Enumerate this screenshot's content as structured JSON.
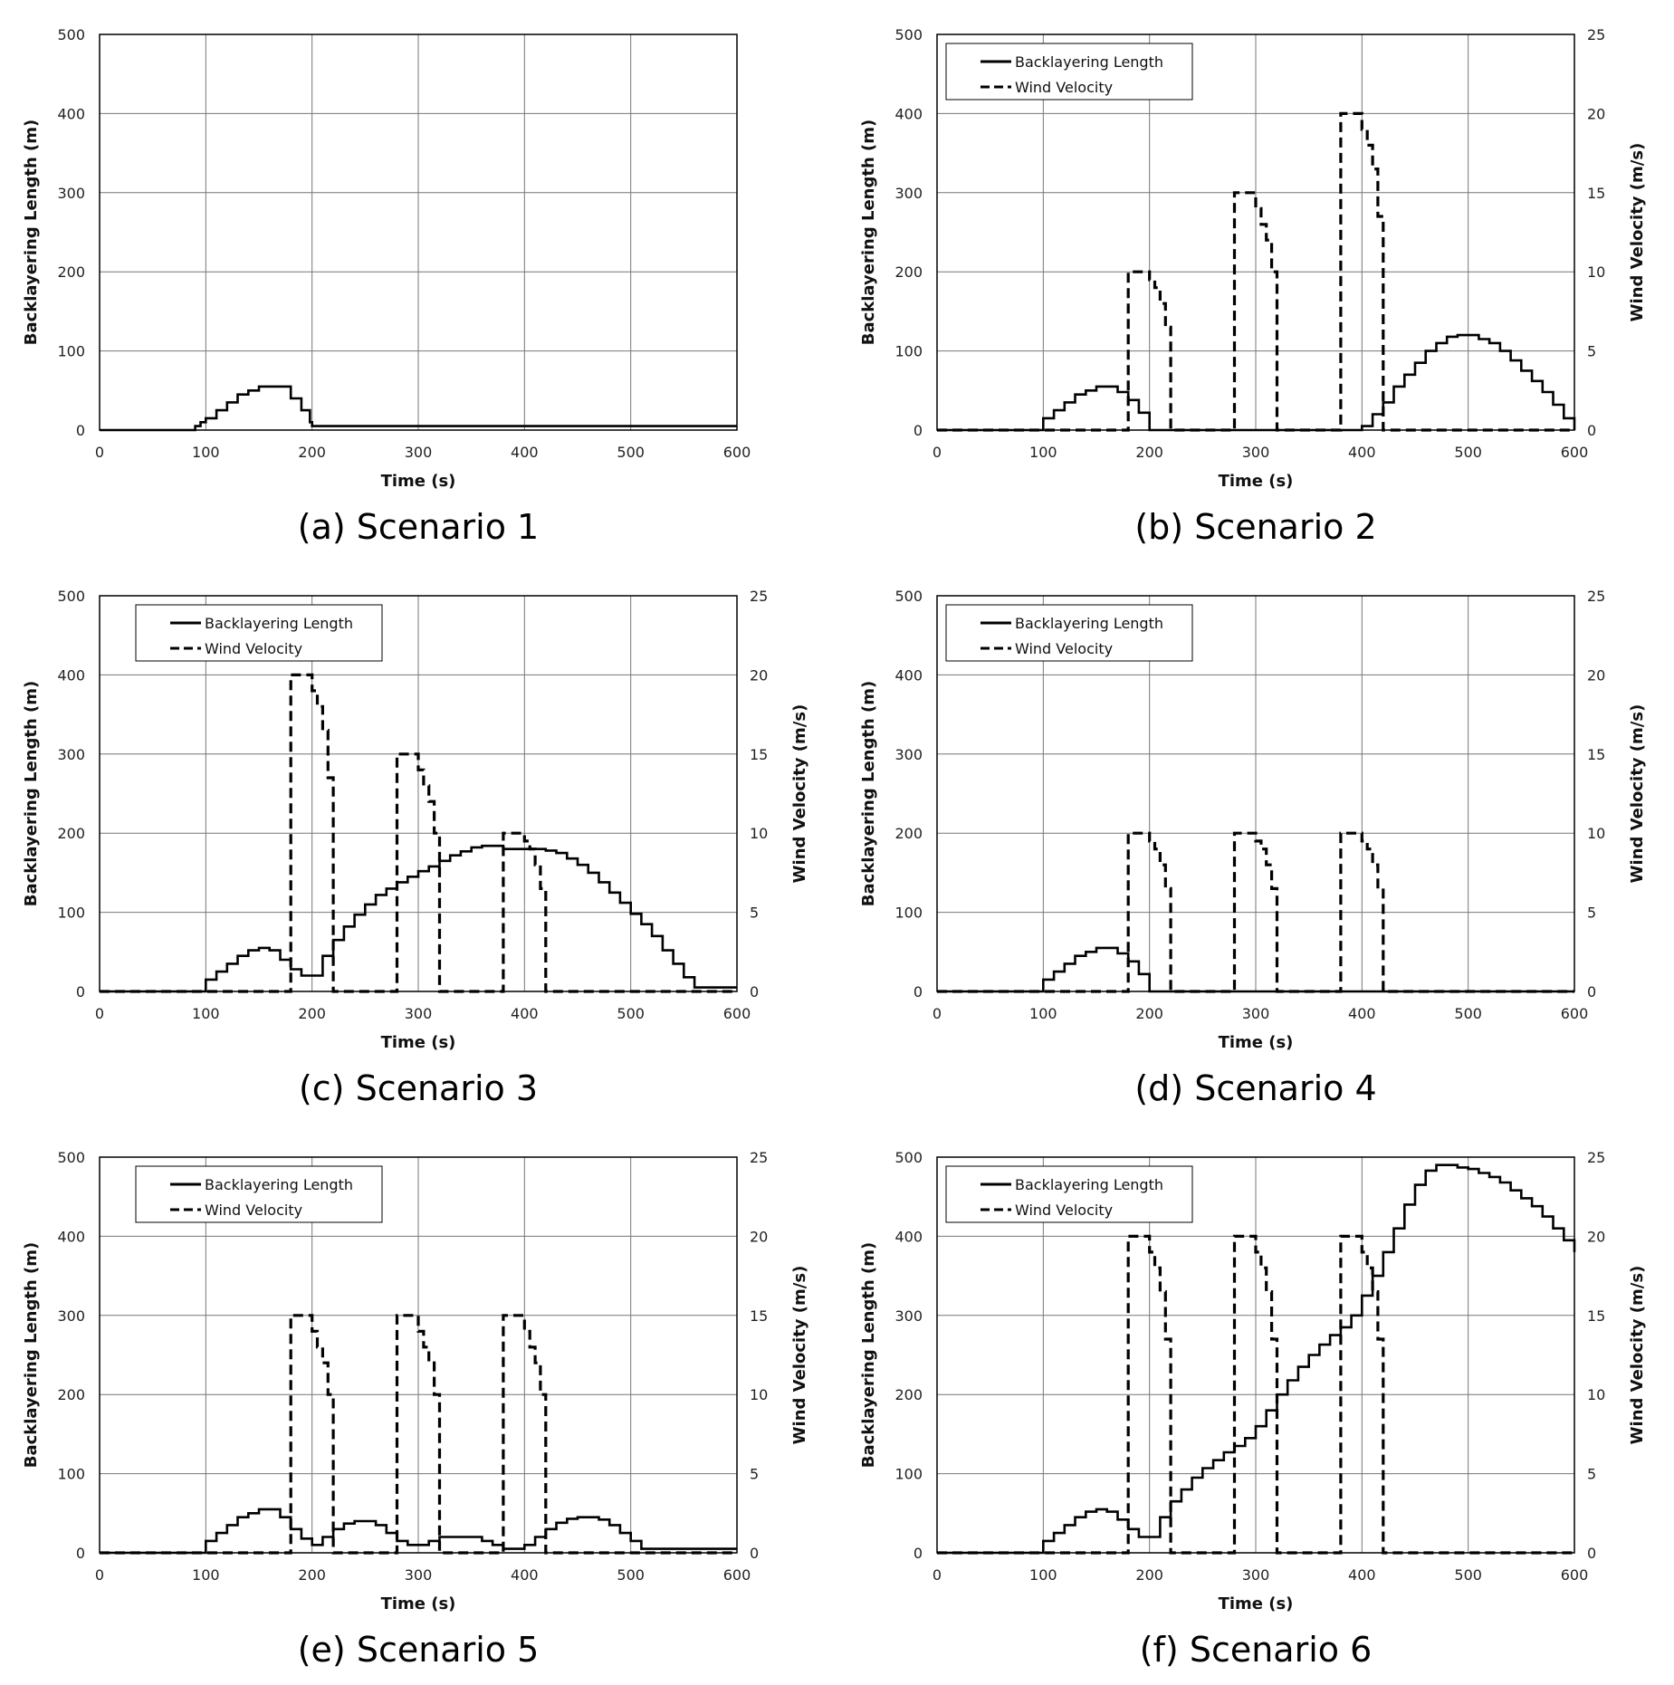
{
  "chart_data": [
    {
      "type": "line",
      "caption": "(a) Scenario 1",
      "xlabel": "Time (s)",
      "ylabel": "Backlayering Length  (m)",
      "y2label": "",
      "xlim": [
        0,
        600
      ],
      "ylim": [
        0,
        500
      ],
      "y2lim": null,
      "xticks": [
        0,
        100,
        200,
        300,
        400,
        500,
        600
      ],
      "yticks": [
        0,
        100,
        200,
        300,
        400,
        500
      ],
      "y2ticks": [],
      "grid": true,
      "legend": [],
      "series": [
        {
          "axis": "y",
          "style": "solid",
          "x": [
            0,
            90,
            95,
            100,
            110,
            120,
            130,
            140,
            150,
            160,
            170,
            180,
            190,
            198,
            200,
            600
          ],
          "y": [
            0,
            5,
            10,
            15,
            25,
            35,
            45,
            50,
            55,
            55,
            55,
            40,
            25,
            10,
            5,
            5
          ]
        }
      ]
    },
    {
      "type": "line",
      "caption": "(b) Scenario 2",
      "xlabel": "Time (s)",
      "ylabel": "Backlayering Length  (m)",
      "y2label": "Wind Velocity (m/s)",
      "xlim": [
        0,
        600
      ],
      "ylim": [
        0,
        500
      ],
      "y2lim": [
        0,
        25
      ],
      "xticks": [
        0,
        100,
        200,
        300,
        400,
        500,
        600
      ],
      "yticks": [
        0,
        100,
        200,
        300,
        400,
        500
      ],
      "y2ticks": [
        0,
        5,
        10,
        15,
        20,
        25
      ],
      "grid": true,
      "legend": [
        "Backlayering Length",
        "Wind Velocity"
      ],
      "series": [
        {
          "name": "Backlayering Length",
          "axis": "y",
          "style": "solid",
          "x": [
            0,
            90,
            100,
            110,
            120,
            130,
            140,
            150,
            160,
            170,
            180,
            190,
            200,
            390,
            400,
            410,
            420,
            430,
            440,
            450,
            460,
            470,
            480,
            490,
            500,
            510,
            520,
            530,
            540,
            550,
            560,
            570,
            580,
            590,
            600
          ],
          "y": [
            0,
            0,
            15,
            25,
            35,
            45,
            50,
            55,
            55,
            48,
            38,
            22,
            0,
            0,
            5,
            20,
            35,
            55,
            70,
            85,
            100,
            110,
            118,
            120,
            120,
            115,
            110,
            100,
            88,
            75,
            62,
            48,
            32,
            15,
            0
          ]
        },
        {
          "name": "Wind Velocity",
          "axis": "y2",
          "style": "dashed",
          "x": [
            0,
            180,
            180,
            190,
            200,
            205,
            210,
            215,
            220,
            220,
            280,
            280,
            290,
            300,
            305,
            310,
            315,
            320,
            320,
            380,
            380,
            390,
            400,
            405,
            410,
            415,
            420,
            420,
            600
          ],
          "y": [
            0,
            0,
            10,
            10,
            9.5,
            9,
            8,
            6.5,
            3,
            0,
            0,
            15,
            15,
            14,
            13,
            12,
            10,
            4.5,
            0,
            0,
            20,
            20,
            19,
            18,
            16.5,
            13.5,
            6,
            0,
            0
          ]
        }
      ]
    },
    {
      "type": "line",
      "caption": "(c) Scenario 3",
      "xlabel": "Time (s)",
      "ylabel": "Backlayering Length  (m)",
      "y2label": "Wind Velocity (m/s)",
      "xlim": [
        0,
        600
      ],
      "ylim": [
        0,
        500
      ],
      "y2lim": [
        0,
        25
      ],
      "xticks": [
        0,
        100,
        200,
        300,
        400,
        500,
        600
      ],
      "yticks": [
        0,
        100,
        200,
        300,
        400,
        500
      ],
      "y2ticks": [
        0,
        5,
        10,
        15,
        20,
        25
      ],
      "grid": true,
      "legend": [
        "Backlayering Length",
        "Wind Velocity"
      ],
      "series": [
        {
          "name": "Backlayering Length",
          "axis": "y",
          "style": "solid",
          "x": [
            0,
            90,
            100,
            110,
            120,
            130,
            140,
            150,
            160,
            170,
            180,
            190,
            200,
            210,
            220,
            230,
            240,
            250,
            260,
            270,
            280,
            290,
            300,
            310,
            320,
            330,
            340,
            350,
            360,
            370,
            380,
            390,
            400,
            410,
            420,
            430,
            440,
            450,
            460,
            470,
            480,
            490,
            500,
            510,
            520,
            530,
            540,
            550,
            560,
            600
          ],
          "y": [
            0,
            0,
            15,
            25,
            35,
            45,
            52,
            55,
            52,
            40,
            28,
            20,
            20,
            45,
            65,
            82,
            97,
            110,
            122,
            130,
            138,
            145,
            152,
            158,
            165,
            172,
            177,
            182,
            184,
            184,
            180,
            180,
            180,
            180,
            178,
            175,
            168,
            160,
            150,
            138,
            125,
            112,
            98,
            85,
            70,
            52,
            35,
            18,
            5,
            5
          ]
        },
        {
          "name": "Wind Velocity",
          "axis": "y2",
          "style": "dashed",
          "x": [
            0,
            180,
            180,
            190,
            200,
            205,
            210,
            215,
            220,
            220,
            280,
            280,
            290,
            300,
            305,
            310,
            315,
            320,
            320,
            380,
            380,
            390,
            400,
            405,
            410,
            415,
            420,
            420,
            600
          ],
          "y": [
            0,
            0,
            20,
            20,
            19,
            18,
            16.5,
            13.5,
            6,
            0,
            0,
            15,
            15,
            14,
            13,
            12,
            10,
            4.5,
            0,
            0,
            10,
            10,
            9.5,
            9,
            8,
            6.5,
            3,
            0,
            0
          ]
        }
      ]
    },
    {
      "type": "line",
      "caption": "(d) Scenario 4",
      "xlabel": "Time (s)",
      "ylabel": "Backlayering Length  (m)",
      "y2label": "Wind Velocity (m/s)",
      "xlim": [
        0,
        600
      ],
      "ylim": [
        0,
        500
      ],
      "y2lim": [
        0,
        25
      ],
      "xticks": [
        0,
        100,
        200,
        300,
        400,
        500,
        600
      ],
      "yticks": [
        0,
        100,
        200,
        300,
        400,
        500
      ],
      "y2ticks": [
        0,
        5,
        10,
        15,
        20,
        25
      ],
      "grid": true,
      "legend": [
        "Backlayering Length",
        "Wind Velocity"
      ],
      "series": [
        {
          "name": "Backlayering Length",
          "axis": "y",
          "style": "solid",
          "x": [
            0,
            90,
            100,
            110,
            120,
            130,
            140,
            150,
            160,
            170,
            180,
            190,
            200,
            600
          ],
          "y": [
            0,
            0,
            15,
            25,
            35,
            45,
            50,
            55,
            55,
            48,
            38,
            22,
            0,
            0
          ]
        },
        {
          "name": "Wind Velocity",
          "axis": "y2",
          "style": "dashed",
          "x": [
            0,
            180,
            180,
            190,
            200,
            205,
            210,
            215,
            220,
            220,
            280,
            280,
            290,
            300,
            305,
            310,
            315,
            320,
            320,
            380,
            380,
            390,
            400,
            405,
            410,
            415,
            420,
            420,
            600
          ],
          "y": [
            0,
            0,
            10,
            10,
            9.5,
            9,
            8,
            6.5,
            3,
            0,
            0,
            10,
            10,
            9.5,
            9,
            8,
            6.5,
            3,
            0,
            0,
            10,
            10,
            9.5,
            9,
            8,
            6.5,
            3,
            0,
            0
          ]
        }
      ]
    },
    {
      "type": "line",
      "caption": "(e) Scenario 5",
      "xlabel": "Time (s)",
      "ylabel": "Backlayering Length  (m)",
      "y2label": "Wind Velocity (m/s)",
      "xlim": [
        0,
        600
      ],
      "ylim": [
        0,
        500
      ],
      "y2lim": [
        0,
        25
      ],
      "xticks": [
        0,
        100,
        200,
        300,
        400,
        500,
        600
      ],
      "yticks": [
        0,
        100,
        200,
        300,
        400,
        500
      ],
      "y2ticks": [
        0,
        5,
        10,
        15,
        20,
        25
      ],
      "grid": true,
      "legend": [
        "Backlayering Length",
        "Wind Velocity"
      ],
      "series": [
        {
          "name": "Backlayering Length",
          "axis": "y",
          "style": "solid",
          "x": [
            0,
            90,
            100,
            110,
            120,
            130,
            140,
            150,
            160,
            170,
            180,
            190,
            200,
            210,
            220,
            230,
            240,
            250,
            260,
            270,
            280,
            290,
            300,
            310,
            320,
            330,
            340,
            350,
            360,
            370,
            380,
            390,
            400,
            410,
            420,
            430,
            440,
            450,
            460,
            470,
            480,
            490,
            500,
            510,
            520,
            600
          ],
          "y": [
            0,
            0,
            15,
            25,
            35,
            45,
            50,
            55,
            55,
            45,
            30,
            18,
            10,
            20,
            30,
            37,
            40,
            40,
            35,
            25,
            15,
            10,
            10,
            15,
            20,
            20,
            20,
            20,
            15,
            10,
            5,
            5,
            10,
            20,
            30,
            38,
            43,
            45,
            45,
            42,
            35,
            25,
            15,
            5,
            5,
            5
          ]
        },
        {
          "name": "Wind Velocity",
          "axis": "y2",
          "style": "dashed",
          "x": [
            0,
            180,
            180,
            190,
            200,
            205,
            210,
            215,
            220,
            220,
            280,
            280,
            290,
            300,
            305,
            310,
            315,
            320,
            320,
            380,
            380,
            390,
            400,
            405,
            410,
            415,
            420,
            420,
            600
          ],
          "y": [
            0,
            0,
            15,
            15,
            14,
            13,
            12,
            10,
            4.5,
            0,
            0,
            15,
            15,
            14,
            13,
            12,
            10,
            4.5,
            0,
            0,
            15,
            15,
            14,
            13,
            12,
            10,
            4.5,
            0,
            0
          ]
        }
      ]
    },
    {
      "type": "line",
      "caption": "(f) Scenario 6",
      "xlabel": "Time (s)",
      "ylabel": "Backlayering Length  (m)",
      "y2label": "Wind Velocity (m/s)",
      "xlim": [
        0,
        600
      ],
      "ylim": [
        0,
        500
      ],
      "y2lim": [
        0,
        25
      ],
      "xticks": [
        0,
        100,
        200,
        300,
        400,
        500,
        600
      ],
      "yticks": [
        0,
        100,
        200,
        300,
        400,
        500
      ],
      "y2ticks": [
        0,
        5,
        10,
        15,
        20,
        25
      ],
      "grid": true,
      "legend": [
        "Backlayering Length",
        "Wind Velocity"
      ],
      "series": [
        {
          "name": "Backlayering Length",
          "axis": "y",
          "style": "solid",
          "x": [
            0,
            90,
            100,
            110,
            120,
            130,
            140,
            150,
            160,
            170,
            180,
            190,
            200,
            210,
            220,
            230,
            240,
            250,
            260,
            270,
            280,
            290,
            300,
            310,
            320,
            330,
            340,
            350,
            360,
            370,
            380,
            390,
            400,
            410,
            420,
            430,
            440,
            450,
            460,
            470,
            480,
            490,
            500,
            510,
            520,
            530,
            540,
            550,
            560,
            570,
            580,
            590,
            600
          ],
          "y": [
            0,
            0,
            15,
            25,
            35,
            45,
            52,
            55,
            52,
            42,
            30,
            20,
            20,
            45,
            65,
            80,
            95,
            107,
            117,
            127,
            135,
            145,
            160,
            180,
            200,
            218,
            235,
            250,
            263,
            275,
            285,
            300,
            325,
            350,
            380,
            410,
            440,
            465,
            483,
            490,
            490,
            487,
            485,
            480,
            475,
            468,
            458,
            448,
            438,
            425,
            410,
            395,
            380
          ]
        },
        {
          "name": "Wind Velocity",
          "axis": "y2",
          "style": "dashed",
          "x": [
            0,
            180,
            180,
            190,
            200,
            205,
            210,
            215,
            220,
            220,
            280,
            280,
            290,
            300,
            305,
            310,
            315,
            320,
            320,
            380,
            380,
            390,
            400,
            405,
            410,
            415,
            420,
            420,
            600
          ],
          "y": [
            0,
            0,
            20,
            20,
            19,
            18,
            16.5,
            13.5,
            6,
            0,
            0,
            20,
            20,
            19,
            18,
            16.5,
            13.5,
            6,
            0,
            0,
            20,
            20,
            19,
            18,
            16.5,
            13.5,
            6,
            0,
            0
          ]
        }
      ]
    }
  ]
}
